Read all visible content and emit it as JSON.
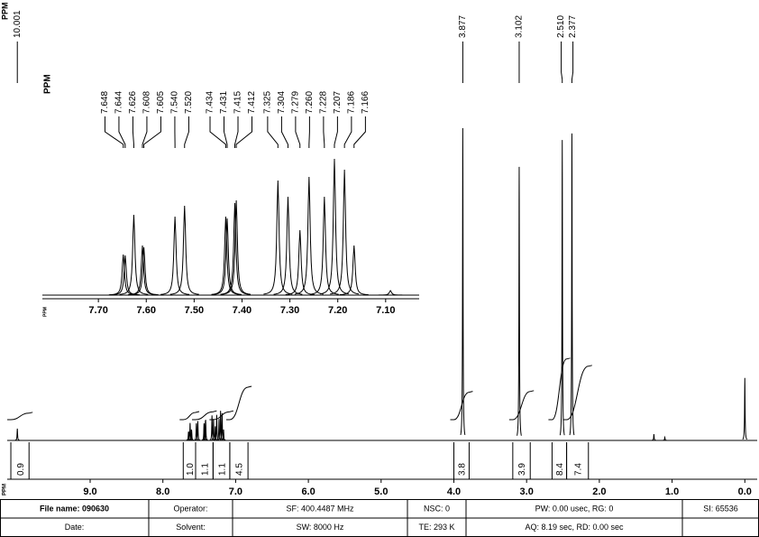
{
  "chart_data": [
    {
      "type": "nmr",
      "label_heading": "PPM",
      "xlabel": "PPM",
      "xlim": [
        10.14,
        -0.17
      ],
      "ylim": [
        0,
        100
      ],
      "xticks": [
        {
          "value": 9,
          "label": "9.0"
        },
        {
          "value": 8,
          "label": "8.0"
        },
        {
          "value": 7,
          "label": "7.0"
        },
        {
          "value": 6,
          "label": "6.0"
        },
        {
          "value": 5,
          "label": "5.0"
        },
        {
          "value": 4,
          "label": "4.0"
        },
        {
          "value": 3,
          "label": "3.0"
        },
        {
          "value": 2,
          "label": "2.0"
        },
        {
          "value": 1,
          "label": "1.0"
        },
        {
          "value": 0,
          "label": "0.0"
        }
      ],
      "peaks": [
        {
          "ppm": 10.001,
          "height": 3.8,
          "label": "10.001"
        },
        {
          "ppm": 7.648,
          "height": 2.8
        },
        {
          "ppm": 7.644,
          "height": 2.8
        },
        {
          "ppm": 7.626,
          "height": 5.6
        },
        {
          "ppm": 7.608,
          "height": 3.5
        },
        {
          "ppm": 7.605,
          "height": 3.3
        },
        {
          "ppm": 7.54,
          "height": 5.5
        },
        {
          "ppm": 7.52,
          "height": 6.2
        },
        {
          "ppm": 7.434,
          "height": 5.5
        },
        {
          "ppm": 7.431,
          "height": 5.3
        },
        {
          "ppm": 7.415,
          "height": 6.4
        },
        {
          "ppm": 7.412,
          "height": 6.6
        },
        {
          "ppm": 7.325,
          "height": 8
        },
        {
          "ppm": 7.304,
          "height": 6.9
        },
        {
          "ppm": 7.279,
          "height": 4.5
        },
        {
          "ppm": 7.26,
          "height": 8.2
        },
        {
          "ppm": 7.228,
          "height": 6.9
        },
        {
          "ppm": 7.207,
          "height": 9.5
        },
        {
          "ppm": 7.186,
          "height": 8.7
        },
        {
          "ppm": 7.166,
          "height": 3.5
        },
        {
          "ppm": 3.877,
          "height": 100,
          "label": "3.877"
        },
        {
          "ppm": 3.102,
          "height": 87.6,
          "label": "3.102"
        },
        {
          "ppm": 2.51,
          "height": 96.2,
          "label": "2.510"
        },
        {
          "ppm": 2.377,
          "height": 98.3,
          "label": "2.377"
        },
        {
          "ppm": 1.25,
          "height": 2
        },
        {
          "ppm": 1.1,
          "height": 1
        },
        {
          "ppm": 0,
          "height": 20
        }
      ],
      "integrals": [
        {
          "value": 0.9,
          "label": "0.9",
          "range": [
            10.09,
            9.84
          ]
        },
        {
          "value": 1.0,
          "label": "1.0",
          "range": [
            7.72,
            7.55
          ]
        },
        {
          "value": 1.1,
          "label": "1.1",
          "range": [
            7.55,
            7.31
          ]
        },
        {
          "value": 1.1,
          "label": "1.1",
          "range": [
            7.31,
            7.08
          ]
        },
        {
          "value": 4.5,
          "label": "4.5",
          "range": [
            7.08,
            6.83
          ]
        },
        {
          "value": 3.8,
          "label": "3.8",
          "range": [
            4.0,
            3.79
          ]
        },
        {
          "value": 3.9,
          "label": "3.9",
          "range": [
            3.19,
            2.95
          ]
        },
        {
          "value": 8.4,
          "label": "8.4",
          "range": [
            2.65,
            2.45
          ]
        },
        {
          "value": 7.4,
          "label": "7.4",
          "range": [
            2.45,
            2.15
          ]
        }
      ]
    },
    {
      "type": "nmr",
      "label_heading": "PPM",
      "xlabel": "PPM",
      "xlim": [
        7.817,
        7.03
      ],
      "ylim": [
        0,
        160
      ],
      "xticks": [
        {
          "value": 7.7,
          "label": "7.70"
        },
        {
          "value": 7.6,
          "label": "7.60"
        },
        {
          "value": 7.5,
          "label": "7.50"
        },
        {
          "value": 7.4,
          "label": "7.40"
        },
        {
          "value": 7.3,
          "label": "7.30"
        },
        {
          "value": 7.2,
          "label": "7.20"
        },
        {
          "value": 7.1,
          "label": "7.10"
        }
      ],
      "peaks": [
        {
          "ppm": 7.648,
          "height": 45,
          "label": "7.648"
        },
        {
          "ppm": 7.644,
          "height": 44,
          "label": "7.644"
        },
        {
          "ppm": 7.626,
          "height": 89,
          "label": "7.626"
        },
        {
          "ppm": 7.608,
          "height": 55,
          "label": "7.608"
        },
        {
          "ppm": 7.605,
          "height": 53,
          "label": "7.605"
        },
        {
          "ppm": 7.54,
          "height": 87,
          "label": "7.540"
        },
        {
          "ppm": 7.52,
          "height": 99,
          "label": "7.520"
        },
        {
          "ppm": 7.434,
          "height": 87,
          "label": "7.434"
        },
        {
          "ppm": 7.431,
          "height": 85,
          "label": "7.431"
        },
        {
          "ppm": 7.415,
          "height": 102,
          "label": "7.415"
        },
        {
          "ppm": 7.412,
          "height": 105,
          "label": "7.412"
        },
        {
          "ppm": 7.325,
          "height": 127,
          "label": "7.325"
        },
        {
          "ppm": 7.304,
          "height": 109,
          "label": "7.304"
        },
        {
          "ppm": 7.279,
          "height": 72,
          "label": "7.279"
        },
        {
          "ppm": 7.26,
          "height": 131,
          "label": "7.260"
        },
        {
          "ppm": 7.228,
          "height": 109,
          "label": "7.228"
        },
        {
          "ppm": 7.207,
          "height": 151,
          "label": "7.207"
        },
        {
          "ppm": 7.186,
          "height": 139,
          "label": "7.186"
        },
        {
          "ppm": 7.166,
          "height": 55,
          "label": "7.166"
        },
        {
          "ppm": 7.09,
          "height": 5
        }
      ]
    }
  ],
  "footer": {
    "rows": [
      [
        "File name: 090630",
        "Operator:",
        "SF: 400.4487 MHz",
        "NSC: 0",
        "PW: 0.00 usec, RG: 0",
        "SI: 65536"
      ],
      [
        "Date:",
        "Solvent:",
        "SW: 8000 Hz",
        "TE: 293 K",
        "AQ: 8.19 sec, RD: 0.00 sec"
      ]
    ]
  }
}
